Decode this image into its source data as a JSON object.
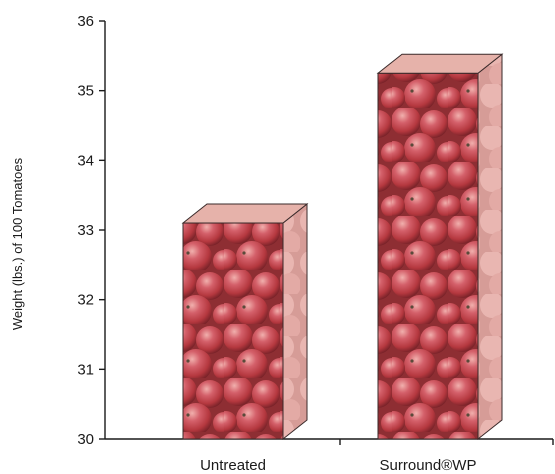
{
  "chart_data": {
    "type": "bar",
    "title": "",
    "xlabel": "",
    "ylabel": "Weight (lbs.) of 100 Tomatoes",
    "categories": [
      "Untreated",
      "Surround®WP"
    ],
    "values": [
      33.1,
      35.25
    ],
    "ylim": [
      30,
      36
    ],
    "yticks": [
      "30",
      "31",
      "32",
      "33",
      "34",
      "35",
      "36"
    ],
    "grid": false,
    "legend": "none",
    "bar_style": "3d-box-with-tomato-photo-fill",
    "colors": {
      "tomato_base": "#c24a4f",
      "tomato_highlight": "#e58a88",
      "tomato_shadow": "#7d2327",
      "top_face": "#e6b2aa",
      "side_face": "#d8a39d",
      "axis": "#1a1a1a"
    }
  }
}
